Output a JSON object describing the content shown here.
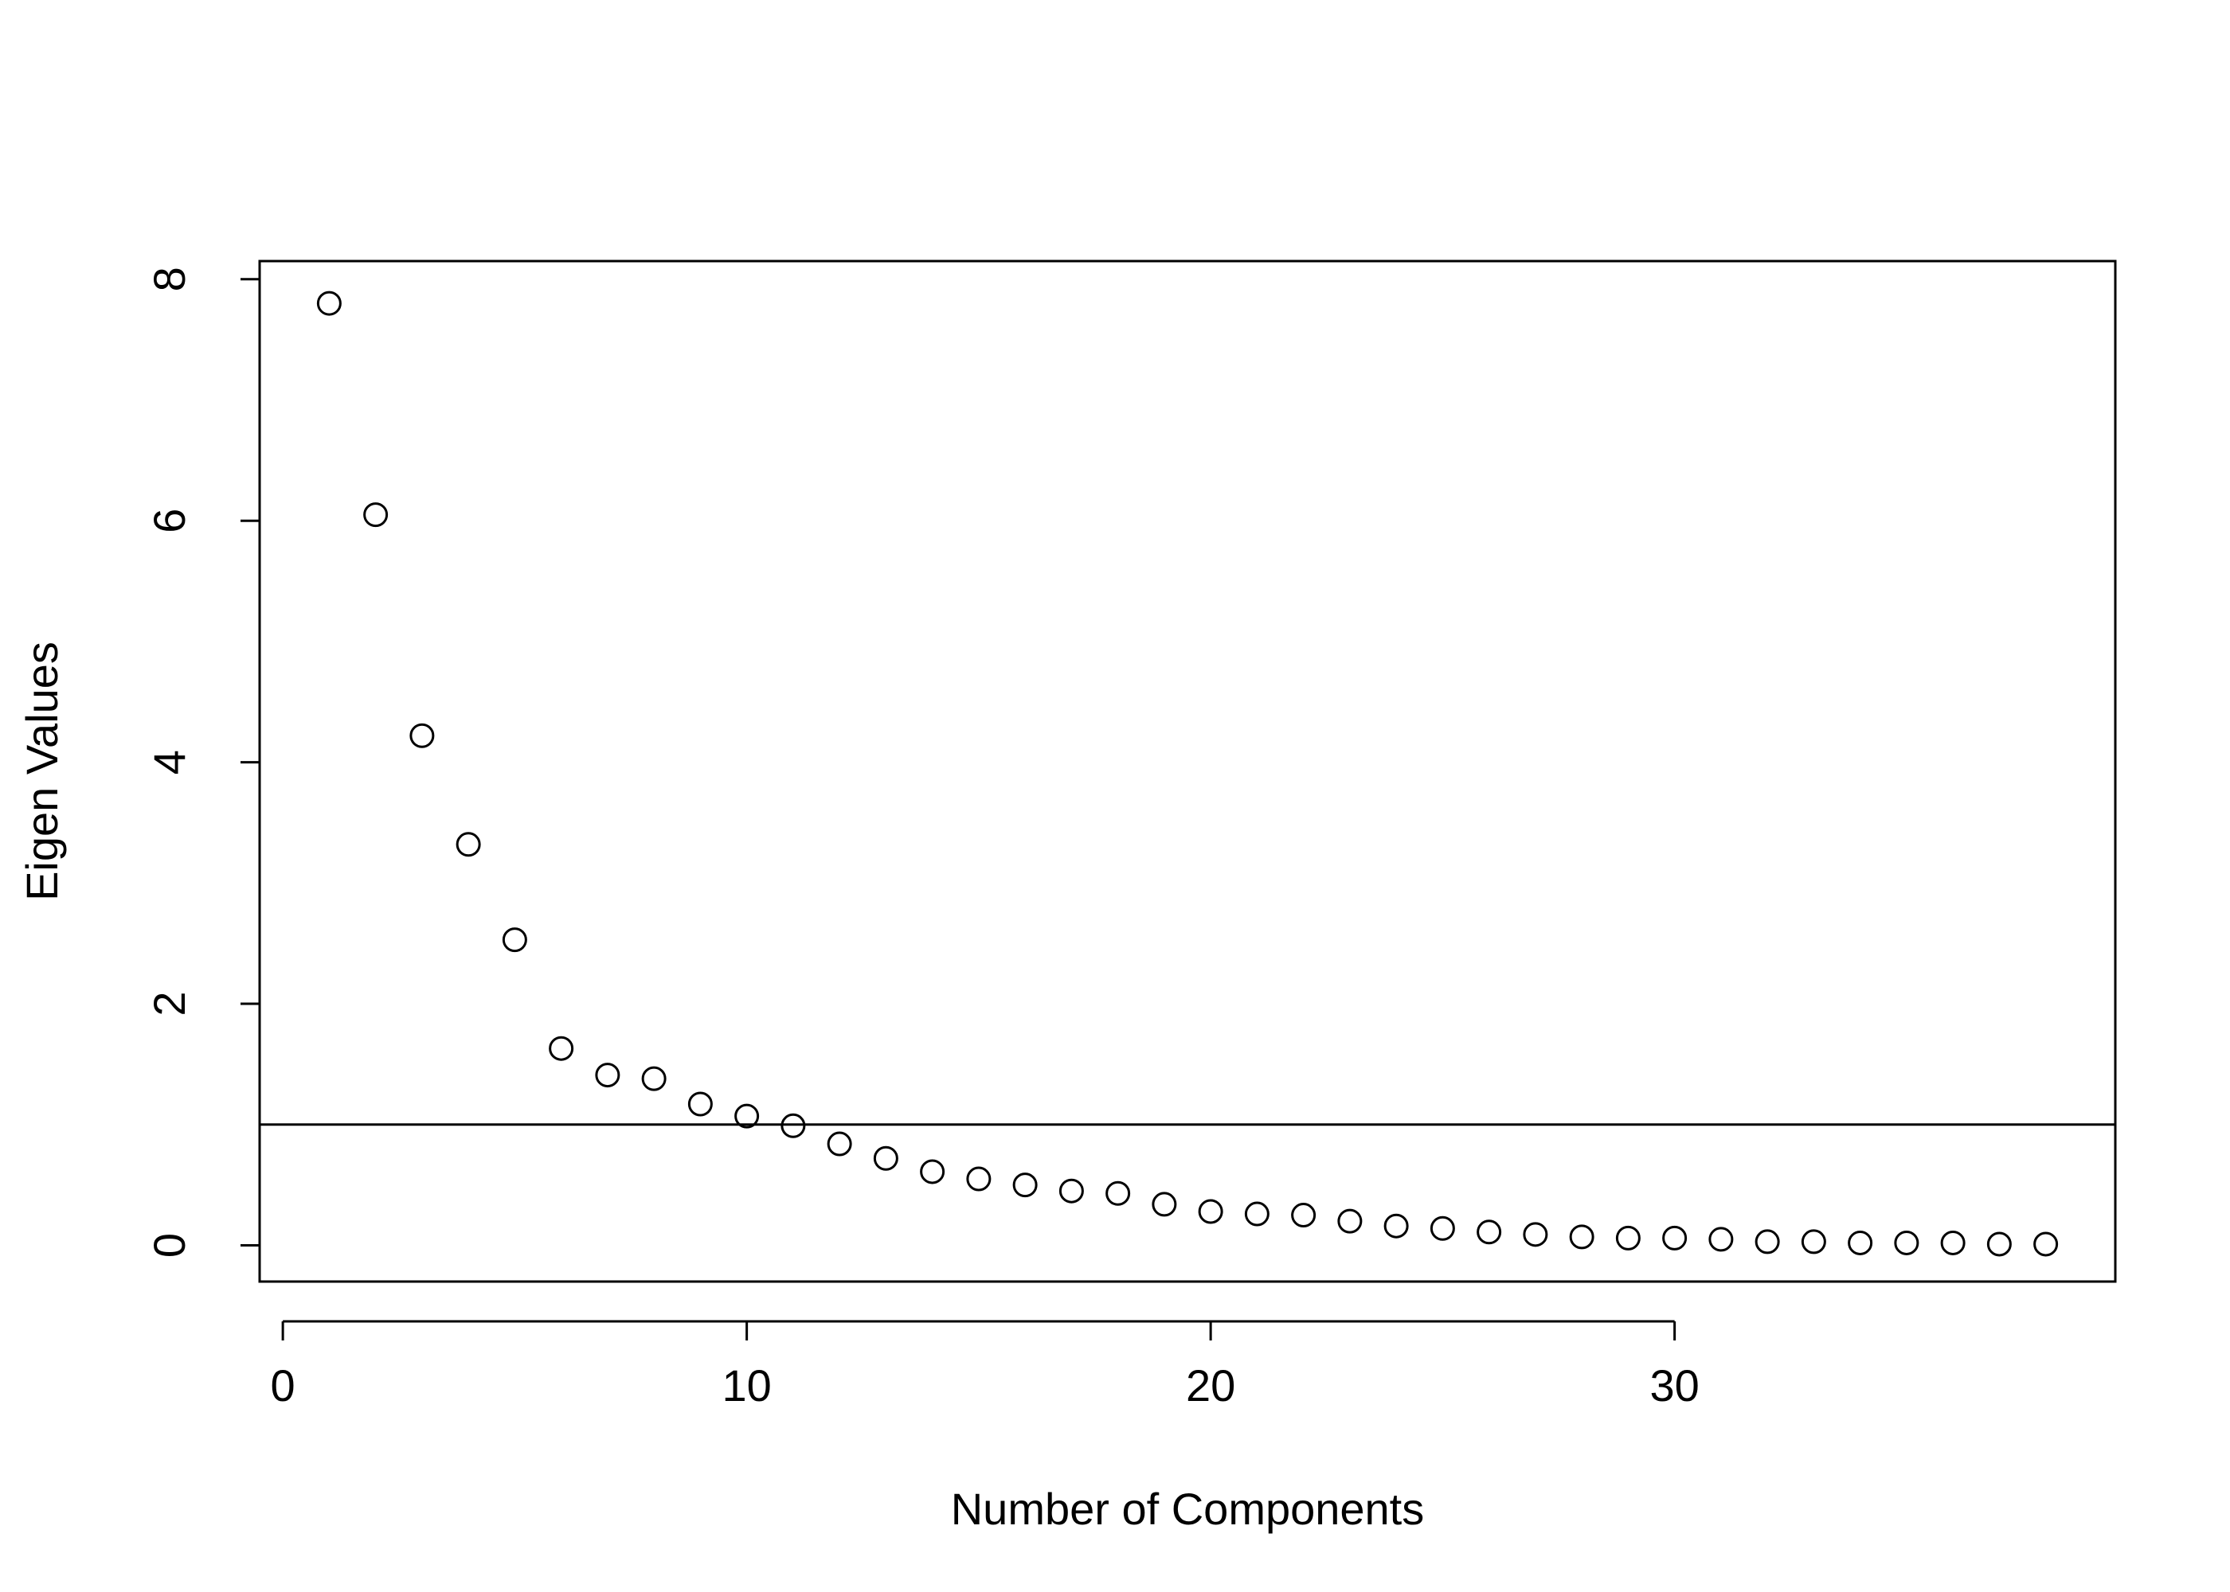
{
  "chart_data": {
    "type": "scatter",
    "title": "",
    "xlabel": "Number of Components",
    "ylabel": "Eigen Values",
    "xlim": [
      -0.5,
      39.5
    ],
    "ylim": [
      -0.3,
      8.15
    ],
    "x_ticks": [
      0,
      10,
      20,
      30
    ],
    "y_ticks": [
      0,
      2,
      4,
      6,
      8
    ],
    "x_tick_labels": [
      "0",
      "10",
      "20",
      "30"
    ],
    "y_tick_labels": [
      "0",
      "2",
      "4",
      "6",
      "8"
    ],
    "reference_line": {
      "orientation": "horizontal",
      "y": 1
    },
    "grid": false,
    "legend": "none",
    "marker": "open-circle",
    "series": [
      {
        "x": [
          1,
          2,
          3,
          4,
          5,
          6,
          7,
          8,
          9,
          10,
          11,
          12,
          13,
          14,
          15,
          16,
          17,
          18,
          19,
          20,
          21,
          22,
          23,
          24,
          25,
          26,
          27,
          28,
          29,
          30,
          31,
          32,
          33,
          34,
          35,
          36,
          37,
          38
        ],
        "values": [
          7.8,
          6.05,
          4.22,
          3.32,
          2.53,
          1.63,
          1.41,
          1.38,
          1.17,
          1.07,
          0.99,
          0.84,
          0.72,
          0.61,
          0.55,
          0.5,
          0.45,
          0.43,
          0.34,
          0.28,
          0.26,
          0.25,
          0.2,
          0.16,
          0.14,
          0.11,
          0.09,
          0.07,
          0.06,
          0.06,
          0.05,
          0.03,
          0.03,
          0.02,
          0.02,
          0.02,
          0.01,
          0.01
        ]
      }
    ]
  }
}
